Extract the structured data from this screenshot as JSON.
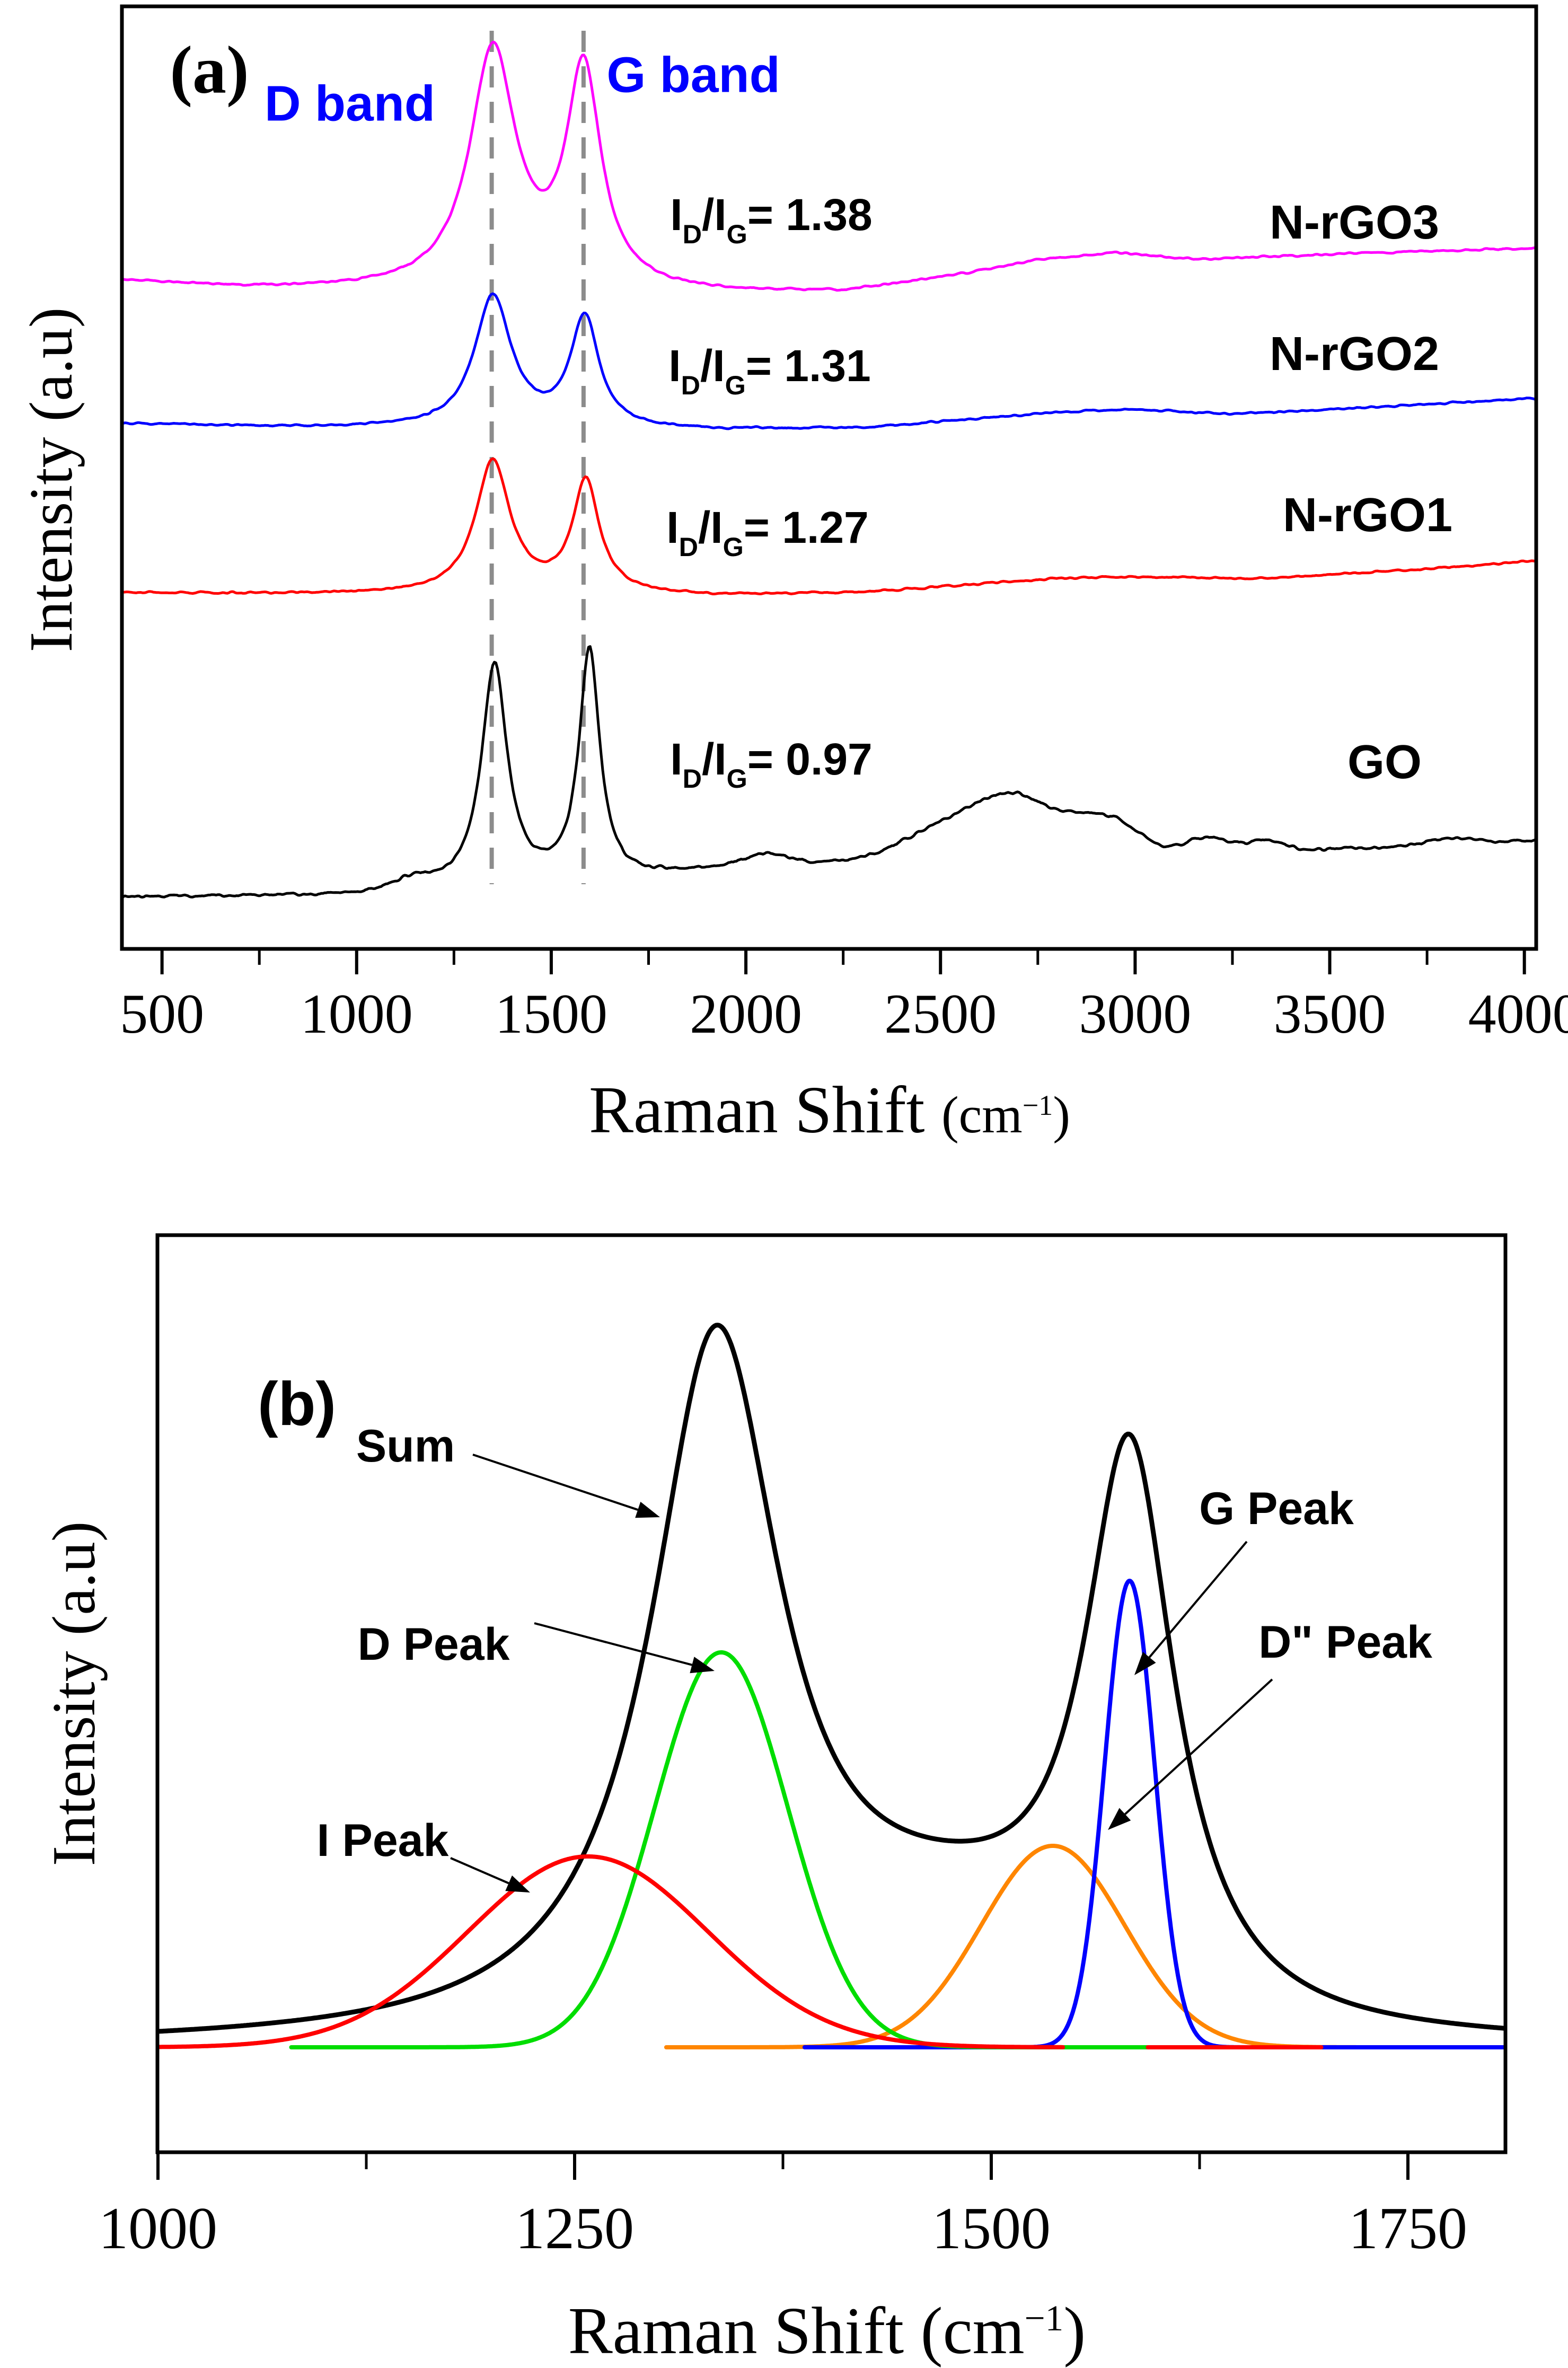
{
  "panel_a": {
    "label": "(a)",
    "d_band": "D band",
    "g_band": "G band",
    "ylabel": "Intensity (a.u)",
    "xlabel": {
      "main": "Raman Shift ",
      "unit_open": "(cm",
      "sup": "−1",
      "close": ")"
    },
    "ratio_parts": {
      "I": "I",
      "D": "D",
      "slash": "/I",
      "G": "G",
      "eq": "= "
    },
    "ratios": [
      {
        "value": "1.38"
      },
      {
        "value": "1.31"
      },
      {
        "value": "1.27"
      },
      {
        "value": "0.97"
      }
    ],
    "samples": [
      {
        "label": "N-rGO3"
      },
      {
        "label": "N-rGO2"
      },
      {
        "label": "N-rGO1"
      },
      {
        "label": "GO"
      }
    ]
  },
  "panel_b": {
    "label": "(b)",
    "ylabel": "Intensity (a.u)",
    "xlabel": {
      "main": "Raman Shift ",
      "unit_open": "(cm",
      "sup": "−1",
      "close": ")"
    },
    "peak_labels": {
      "sum": "Sum",
      "d": "D Peak",
      "g": "G Peak",
      "d2": "D\" Peak",
      "i": "I Peak"
    }
  },
  "chart_data": [
    {
      "id": "a",
      "type": "line",
      "ylabel": "Intensity (a.u)",
      "xlabel": "Raman Shift (cm−1)",
      "xlim": [
        397,
        4030
      ],
      "grid": false,
      "frame": {
        "x0": 230,
        "y0": 12,
        "x1": 2898,
        "y1": 1790
      },
      "xmap": {
        "v0": 397,
        "px0": 230,
        "scale": 0.7343
      },
      "xticks": [
        {
          "v": 500,
          "label": "500"
        },
        {
          "v": 1000,
          "label": "1000"
        },
        {
          "v": 1500,
          "label": "1500"
        },
        {
          "v": 2000,
          "label": "2000"
        },
        {
          "v": 2500,
          "label": "2500"
        },
        {
          "v": 3000,
          "label": "3000"
        },
        {
          "v": 3500,
          "label": "3500"
        },
        {
          "v": 4000,
          "label": "4000"
        }
      ],
      "minor_ticks": [
        750,
        1250,
        1750,
        2250,
        2750,
        3250,
        3750
      ],
      "tick_len": {
        "major": 48,
        "minor": 30
      },
      "dashed_guides": {
        "color": "#8C8C8C",
        "x": [
          1347,
          1583
        ],
        "y0": 58,
        "y1": 1668,
        "band_names": [
          "D band",
          "G band"
        ]
      },
      "series": [
        {
          "name": "N-rGO3",
          "id_ig": "1.38",
          "color": "#FF00FF",
          "sw": 5,
          "seed": 11,
          "noise": 3,
          "domains": [
            [
              397,
              4030
            ]
          ],
          "base": [
            [
              397,
              530
            ],
            [
              700,
              544
            ],
            [
              1200,
              550
            ],
            [
              1900,
              556
            ],
            [
              2250,
              552
            ],
            [
              2550,
              520
            ],
            [
              2750,
              492
            ],
            [
              2950,
              478
            ],
            [
              3150,
              490
            ],
            [
              3600,
              478
            ],
            [
              4030,
              468
            ]
          ],
          "peaks": [
            {
              "t": "l",
              "c": 1350,
              "a": 450,
              "w": 72
            },
            {
              "t": "l",
              "c": 1583,
              "a": 410,
              "w": 54
            }
          ]
        },
        {
          "name": "N-rGO2",
          "id_ig": "1.31",
          "color": "#0000FF",
          "sw": 5,
          "seed": 22,
          "noise": 3,
          "domains": [
            [
              397,
              4030
            ]
          ],
          "base": [
            [
              397,
              800
            ],
            [
              800,
              806
            ],
            [
              1300,
              810
            ],
            [
              1900,
              812
            ],
            [
              2300,
              808
            ],
            [
              2600,
              790
            ],
            [
              2800,
              778
            ],
            [
              3000,
              772
            ],
            [
              3250,
              782
            ],
            [
              3600,
              768
            ],
            [
              4030,
              752
            ]
          ],
          "peaks": [
            {
              "t": "l",
              "c": 1350,
              "a": 248,
              "w": 58
            },
            {
              "t": "l",
              "c": 1586,
              "a": 208,
              "w": 44
            }
          ]
        },
        {
          "name": "N-rGO1",
          "id_ig": "1.27",
          "color": "#FF0000",
          "sw": 5,
          "seed": 33,
          "noise": 3,
          "domains": [
            [
              397,
              4030
            ]
          ],
          "base": [
            [
              397,
              1118
            ],
            [
              900,
              1121
            ],
            [
              1400,
              1122
            ],
            [
              1900,
              1124
            ],
            [
              2300,
              1118
            ],
            [
              2600,
              1102
            ],
            [
              2800,
              1092
            ],
            [
              3000,
              1088
            ],
            [
              3300,
              1092
            ],
            [
              3700,
              1076
            ],
            [
              4030,
              1058
            ]
          ],
          "peaks": [
            {
              "t": "l",
              "c": 1350,
              "a": 250,
              "w": 54
            },
            {
              "t": "l",
              "c": 1589,
              "a": 210,
              "w": 42
            }
          ]
        },
        {
          "name": "GO",
          "id_ig": "0.97",
          "color": "#000000",
          "sw": 5,
          "seed": 44,
          "noise": 5,
          "domains": [
            [
              397,
              4030
            ]
          ],
          "base": [
            [
              397,
              1692
            ],
            [
              900,
              1690
            ],
            [
              1200,
              1682
            ],
            [
              1700,
              1660
            ],
            [
              1900,
              1642
            ],
            [
              2100,
              1632
            ],
            [
              2250,
              1628
            ],
            [
              3050,
              1620
            ],
            [
              3500,
              1602
            ],
            [
              4030,
              1586
            ]
          ],
          "peaks": [
            {
              "t": "l",
              "c": 1354,
              "a": 420,
              "w": 40
            },
            {
              "t": "l",
              "c": 1598,
              "a": 435,
              "w": 32
            },
            {
              "t": "g",
              "c": 2688,
              "a": 120,
              "w": 115
            },
            {
              "t": "g",
              "c": 2935,
              "a": 70,
              "w": 85
            },
            {
              "t": "g",
              "c": 2480,
              "a": 45,
              "w": 100
            },
            {
              "t": "g",
              "c": 2050,
              "a": 20,
              "w": 60
            },
            {
              "t": "g",
              "c": 1150,
              "a": 18,
              "w": 50
            },
            {
              "t": "g",
              "c": 3185,
              "a": 35,
              "w": 55
            },
            {
              "t": "g",
              "c": 3330,
              "a": 22,
              "w": 50
            },
            {
              "t": "g",
              "c": 3820,
              "a": 12,
              "w": 60
            }
          ]
        }
      ]
    },
    {
      "id": "b",
      "type": "line",
      "ylabel": "Intensity (a.u)",
      "xlabel": "Raman Shift (cm−1)",
      "xlim": [
        1000,
        1808
      ],
      "grid": false,
      "frame": {
        "x0": 297,
        "y0": 2330,
        "x1": 2840,
        "y1": 4060
      },
      "xmap": {
        "v0": 1000,
        "px0": 298,
        "scale": 3.144
      },
      "baseline_y": 3862,
      "xticks": [
        {
          "v": 1000,
          "label": "1000"
        },
        {
          "v": 1250,
          "label": "1250"
        },
        {
          "v": 1500,
          "label": "1500"
        },
        {
          "v": 1750,
          "label": "1750"
        }
      ],
      "minor_ticks": [
        1125,
        1375,
        1625
      ],
      "tick_len": {
        "major": 52,
        "minor": 32
      },
      "series": [
        {
          "name": "Sum",
          "color": "#000000",
          "sw": 9,
          "domains": [
            [
              1000,
              1808
            ]
          ],
          "base": [
            [
              1000,
              3862
            ]
          ],
          "peaks": [
            {
              "t": "l",
              "c": 1335,
              "a": 1322,
              "w": 48
            },
            {
              "t": "l",
              "c": 1583,
              "a": 1060,
              "w": 33
            },
            {
              "t": "g",
              "c": 1475,
              "a": 160,
              "w": 70
            }
          ]
        },
        {
          "name": "D\" Peak",
          "color": "#FF8600",
          "sw": 8,
          "domains": [
            [
              1305,
              1808
            ]
          ],
          "base": [
            [
              1000,
              3862
            ]
          ],
          "peaks": [
            {
              "t": "g",
              "c": 1537,
              "a": 380,
              "w": 43
            }
          ]
        },
        {
          "name": "G Peak",
          "color": "#0000FF",
          "sw": 8,
          "domains": [
            [
              1388,
              1808
            ]
          ],
          "base": [
            [
              1000,
              3862
            ]
          ],
          "peaks": [
            {
              "t": "g",
              "c": 1583,
              "a": 880,
              "w": 15
            }
          ]
        },
        {
          "name": "D Peak",
          "color": "#00DD00",
          "sw": 8,
          "domains": [
            [
              1080,
              1602
            ]
          ],
          "base": [
            [
              1000,
              3862
            ]
          ],
          "peaks": [
            {
              "t": "g",
              "c": 1338,
              "a": 745,
              "w": 40
            }
          ]
        },
        {
          "name": "I Peak",
          "color": "#FF0000",
          "sw": 8,
          "domains": [
            [
              1000,
              1543
            ],
            [
              1594,
              1698
            ]
          ],
          "base": [
            [
              1000,
              3862
            ]
          ],
          "peaks": [
            {
              "t": "g",
              "c": 1258,
              "a": 360,
              "w": 72
            }
          ]
        }
      ],
      "annotations": [
        {
          "name": "sum-arrow",
          "from": [
            892,
            2744
          ],
          "to": [
            1245,
            2862
          ]
        },
        {
          "name": "d-peak-arrow",
          "from": [
            1008,
            3062
          ],
          "to": [
            1348,
            3152
          ]
        },
        {
          "name": "g-peak-arrow",
          "from": [
            2352,
            2908
          ],
          "to": [
            2140,
            3160
          ]
        },
        {
          "name": "d2-peak-arrow",
          "from": [
            2400,
            3168
          ],
          "to": [
            2090,
            3452
          ]
        },
        {
          "name": "i-peak-arrow",
          "from": [
            850,
            3505
          ],
          "to": [
            1000,
            3570
          ]
        }
      ]
    }
  ]
}
